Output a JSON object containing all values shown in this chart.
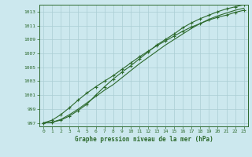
{
  "title": "Graphe pression niveau de la mer (hPa)",
  "background_color": "#cce8ee",
  "grid_color": "#aacdd4",
  "line_color": "#2d6a2d",
  "xlim": [
    -0.5,
    23.5
  ],
  "ylim": [
    996.5,
    1014.0
  ],
  "yticks": [
    997,
    999,
    1001,
    1003,
    1005,
    1007,
    1009,
    1011,
    1013
  ],
  "xticks": [
    0,
    1,
    2,
    3,
    4,
    5,
    6,
    7,
    8,
    9,
    10,
    11,
    12,
    13,
    14,
    15,
    16,
    17,
    18,
    19,
    20,
    21,
    22,
    23
  ],
  "hours": [
    0,
    1,
    2,
    3,
    4,
    5,
    6,
    7,
    8,
    9,
    10,
    11,
    12,
    13,
    14,
    15,
    16,
    17,
    18,
    19,
    20,
    21,
    22,
    23
  ],
  "line1": [
    997.0,
    997.1,
    997.5,
    998.2,
    999.0,
    999.9,
    1000.8,
    1001.7,
    1002.5,
    1003.5,
    1004.5,
    1005.5,
    1006.4,
    1007.3,
    1008.2,
    1009.0,
    1009.8,
    1010.6,
    1011.3,
    1011.9,
    1012.4,
    1012.8,
    1013.2,
    1013.5
  ],
  "line2": [
    997.0,
    997.4,
    998.2,
    999.2,
    1000.3,
    1001.3,
    1002.2,
    1003.0,
    1003.8,
    1004.7,
    1005.6,
    1006.5,
    1007.3,
    1008.1,
    1008.8,
    1009.5,
    1010.2,
    1010.8,
    1011.3,
    1011.8,
    1012.2,
    1012.5,
    1012.9,
    1013.2
  ],
  "line3": [
    997.0,
    997.1,
    997.4,
    998.0,
    998.8,
    999.7,
    1001.0,
    1002.2,
    1003.3,
    1004.3,
    1005.2,
    1006.2,
    1007.2,
    1008.2,
    1009.0,
    1009.8,
    1010.7,
    1011.4,
    1012.0,
    1012.5,
    1013.0,
    1013.4,
    1013.7,
    1014.0
  ]
}
